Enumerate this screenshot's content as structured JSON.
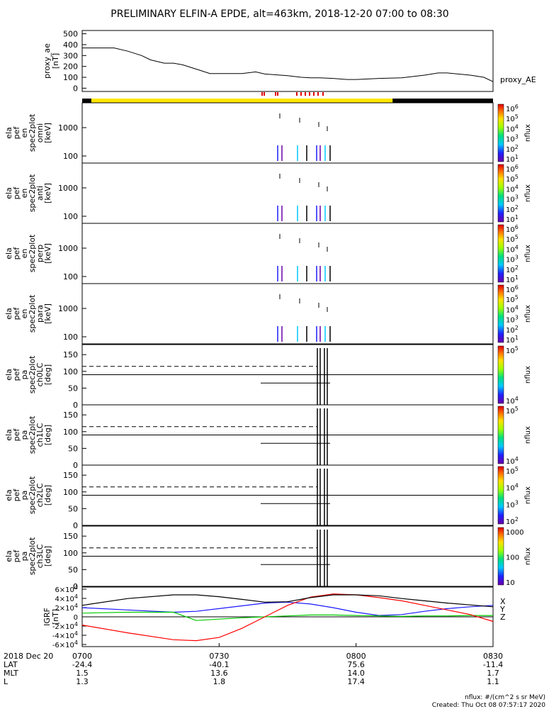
{
  "title": "PRELIMINARY ELFIN-A EPDE, alt=463km, 2018-12-20 07:00 to 08:30",
  "footer": {
    "units": "nflux: #/(cm^2 s sr MeV)",
    "created": "Created: Thu Oct 08 07:57:17 2020"
  },
  "colors": {
    "yellow_bar": "#ffe600",
    "red_marks": "#e00000",
    "black": "#000000",
    "x_comp": "#1a1aff",
    "y_comp": "#00cc00",
    "z_comp": "#ff0000"
  },
  "time_axis": {
    "date_label": "2018 Dec 20",
    "ticks": [
      "0700",
      "0730",
      "0800",
      "0830"
    ],
    "rows": [
      {
        "label": "LAT",
        "values": [
          "-24.4",
          "-40.1",
          "75.6",
          "-11.4"
        ]
      },
      {
        "label": "MLT",
        "values": [
          "1.5",
          "13.6",
          "14.0",
          "1.7"
        ]
      },
      {
        "label": "L",
        "values": [
          "1.3",
          "1.8",
          "17.4",
          "1.1"
        ]
      }
    ]
  },
  "state_bar": {
    "yellow_start_min": 2,
    "yellow_end_min": 68
  },
  "colorbar_icons": [
    "rainbow-colorbar"
  ],
  "chart_data": [
    {
      "type": "line",
      "ylabel": "proxy_ae [nT]",
      "legend": "proxy_AE",
      "yticks": [
        "500",
        "400",
        "300",
        "200",
        "100",
        "0"
      ],
      "ylim": [
        -30,
        530
      ],
      "x_minutes": [
        0,
        7,
        10,
        13,
        15,
        18,
        20,
        22,
        25,
        28,
        30,
        35,
        38,
        40,
        45,
        48,
        50,
        52,
        55,
        58,
        60,
        63,
        65,
        70,
        72,
        75,
        78,
        80,
        85,
        88,
        90
      ],
      "values": [
        370,
        370,
        340,
        300,
        260,
        230,
        230,
        215,
        175,
        135,
        135,
        135,
        150,
        130,
        115,
        100,
        95,
        95,
        90,
        80,
        80,
        85,
        90,
        95,
        105,
        120,
        140,
        140,
        120,
        100,
        60
      ]
    },
    {
      "type": "heatmap",
      "ylabel": "ela pef en spec2plot omni [keV]",
      "yticks": [
        "1000",
        "100"
      ],
      "colorbar_ticks": [
        "10^6",
        "10^5",
        "10^4",
        "10^3",
        "10^2",
        "10^1"
      ],
      "colorbar_label": "nflux"
    },
    {
      "type": "heatmap",
      "ylabel": "ela pef en spec2plot anti [keV]",
      "yticks": [
        "1000",
        "100"
      ],
      "colorbar_ticks": [
        "10^6",
        "10^5",
        "10^4",
        "10^3",
        "10^2",
        "10^1"
      ],
      "colorbar_label": "nflux"
    },
    {
      "type": "heatmap",
      "ylabel": "ela pef en spec2plot perp [keV]",
      "yticks": [
        "1000",
        "100"
      ],
      "colorbar_ticks": [
        "10^6",
        "10^5",
        "10^4",
        "10^3",
        "10^2",
        "10^1"
      ],
      "colorbar_label": "nflux"
    },
    {
      "type": "heatmap",
      "ylabel": "ela pef en spec2plot para [keV]",
      "yticks": [
        "1000",
        "100"
      ],
      "colorbar_ticks": [
        "10^6",
        "10^5",
        "10^4",
        "10^3",
        "10^2",
        "10^1"
      ],
      "colorbar_label": "nflux"
    },
    {
      "type": "heatmap",
      "ylabel": "ela pef pa spec2plot ch0LC [deg]",
      "yticks": [
        "150",
        "100",
        "50",
        "0"
      ],
      "colorbar_ticks": [
        "10^5",
        "10^4"
      ],
      "colorbar_label": "nflux"
    },
    {
      "type": "heatmap",
      "ylabel": "ela pef pa spec2plot ch1LC [deg]",
      "yticks": [
        "150",
        "100",
        "50",
        "0"
      ],
      "colorbar_ticks": [
        "10^5",
        "10^4"
      ],
      "colorbar_label": "nflux"
    },
    {
      "type": "heatmap",
      "ylabel": "ela pef pa spec2plot ch2LC [deg]",
      "yticks": [
        "150",
        "100",
        "50",
        "0"
      ],
      "colorbar_ticks": [
        "10^5",
        "10^4",
        "10^3",
        "10^2"
      ],
      "colorbar_label": "nflux"
    },
    {
      "type": "heatmap",
      "ylabel": "ela pef pa spec2plot ch3LC [deg]",
      "yticks": [
        "150",
        "100",
        "50",
        "0"
      ],
      "colorbar_ticks": [
        "1000",
        "100",
        "10"
      ],
      "colorbar_label": "nflux"
    },
    {
      "type": "line",
      "ylabel": "IGRF [nT]",
      "yticks": [
        "6×10^4",
        "4×10^4",
        "2×10^4",
        "0",
        "-2×10^4",
        "-4×10^4",
        "-6×10^4"
      ],
      "ylim": [
        -65000,
        65000
      ],
      "legend": [
        "X",
        "Y",
        "Z"
      ],
      "x_minutes": [
        0,
        10,
        20,
        25,
        30,
        35,
        40,
        45,
        50,
        55,
        60,
        65,
        70,
        75,
        80,
        85,
        90
      ],
      "series": [
        {
          "name": "X",
          "values": [
            20000,
            15000,
            10000,
            12000,
            18000,
            24000,
            30000,
            32000,
            28000,
            20000,
            10000,
            3000,
            5000,
            12000,
            18000,
            22000,
            25000
          ]
        },
        {
          "name": "Y",
          "values": [
            8000,
            10000,
            10000,
            -8000,
            -5000,
            -2000,
            0,
            2000,
            4000,
            4000,
            3000,
            2000,
            1000,
            2000,
            2000,
            3000,
            3000
          ]
        },
        {
          "name": "Z",
          "values": [
            -18000,
            -35000,
            -50000,
            -52000,
            -45000,
            -25000,
            0,
            25000,
            43000,
            50000,
            48000,
            42000,
            35000,
            25000,
            15000,
            5000,
            -10000
          ]
        },
        {
          "name": "",
          "values": [
            25000,
            40000,
            48000,
            48000,
            44000,
            38000,
            32000,
            33000,
            42000,
            48000,
            48000,
            46000,
            40000,
            35000,
            30000,
            26000,
            22000
          ]
        }
      ]
    }
  ]
}
